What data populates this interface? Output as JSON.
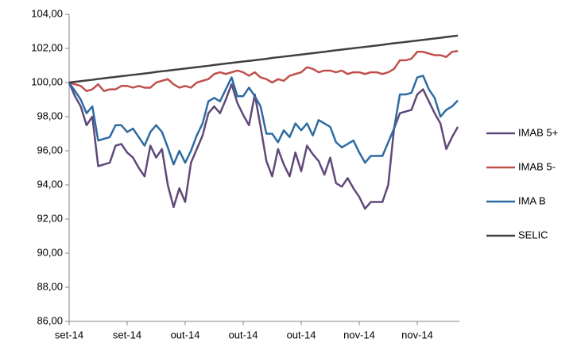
{
  "chart_data": {
    "type": "line",
    "categories": [
      "set-14",
      null,
      null,
      null,
      null,
      null,
      null,
      null,
      null,
      null,
      "set-14",
      null,
      null,
      null,
      null,
      null,
      null,
      null,
      null,
      null,
      "out-14",
      null,
      null,
      null,
      null,
      null,
      null,
      null,
      null,
      null,
      "out-14",
      null,
      null,
      null,
      null,
      null,
      null,
      null,
      null,
      null,
      "out-14",
      null,
      null,
      null,
      null,
      null,
      null,
      null,
      null,
      null,
      "nov-14",
      null,
      null,
      null,
      null,
      null,
      null,
      null,
      null,
      null,
      "nov-14",
      null,
      null,
      null,
      null,
      null,
      null,
      null
    ],
    "ylim": [
      86,
      104
    ],
    "yticks": [
      {
        "value": 86,
        "label": "86,00"
      },
      {
        "value": 88,
        "label": "88,00"
      },
      {
        "value": 90,
        "label": "90,00"
      },
      {
        "value": 92,
        "label": "92,00"
      },
      {
        "value": 94,
        "label": "94,00"
      },
      {
        "value": 96,
        "label": "96,00"
      },
      {
        "value": 98,
        "label": "98,00"
      },
      {
        "value": 100,
        "label": "100,00"
      },
      {
        "value": 102,
        "label": "102,00"
      },
      {
        "value": 104,
        "label": "104,00"
      }
    ],
    "grid": false,
    "legend": "right",
    "series": [
      {
        "name": "IMAB 5+",
        "color": "#60497a",
        "values": [
          100,
          99.2,
          98.6,
          97.5,
          98.0,
          95.1,
          95.2,
          95.3,
          96.3,
          96.4,
          95.9,
          95.6,
          95.0,
          94.5,
          96.3,
          95.6,
          96.1,
          94.0,
          92.7,
          93.8,
          93.0,
          95.3,
          96.1,
          96.9,
          98.2,
          98.6,
          98.2,
          99.0,
          99.9,
          98.8,
          98.1,
          97.5,
          99.3,
          97.4,
          95.4,
          94.5,
          96.1,
          95.2,
          94.5,
          95.9,
          94.8,
          96.3,
          95.8,
          95.4,
          94.6,
          95.6,
          94.1,
          93.9,
          94.4,
          93.8,
          93.3,
          92.6,
          93.0,
          93.0,
          93.0,
          94.0,
          97.3,
          98.2,
          98.3,
          98.4,
          99.3,
          99.6,
          98.9,
          98.2,
          97.6,
          96.1,
          96.8,
          97.4
        ]
      },
      {
        "name": "IMAB 5-",
        "color": "#c0504d",
        "values": [
          100,
          99.9,
          99.8,
          99.5,
          99.6,
          99.9,
          99.5,
          99.6,
          99.6,
          99.8,
          99.8,
          99.7,
          99.8,
          99.7,
          99.7,
          100.0,
          100.1,
          100.2,
          99.9,
          99.7,
          99.8,
          99.7,
          100.0,
          100.1,
          100.2,
          100.5,
          100.6,
          100.5,
          100.6,
          100.7,
          100.6,
          100.4,
          100.6,
          100.3,
          100.2,
          100.0,
          100.2,
          100.1,
          100.4,
          100.5,
          100.6,
          100.9,
          100.8,
          100.6,
          100.7,
          100.7,
          100.6,
          100.7,
          100.5,
          100.6,
          100.6,
          100.5,
          100.6,
          100.6,
          100.5,
          100.6,
          100.8,
          101.3,
          101.3,
          101.4,
          101.8,
          101.8,
          101.7,
          101.6,
          101.6,
          101.5,
          101.8,
          101.85
        ]
      },
      {
        "name": "IMA B",
        "color": "#2e6ba3",
        "values": [
          100,
          99.5,
          99.0,
          98.2,
          98.6,
          96.6,
          96.7,
          96.8,
          97.5,
          97.5,
          97.1,
          97.3,
          96.8,
          96.3,
          97.1,
          97.5,
          97.1,
          96.2,
          95.2,
          96.0,
          95.3,
          96.0,
          96.9,
          97.6,
          98.9,
          99.1,
          98.9,
          99.6,
          100.3,
          99.2,
          99.2,
          99.7,
          99.2,
          98.6,
          97.0,
          97.0,
          96.5,
          97.2,
          96.8,
          97.6,
          97.2,
          97.6,
          96.9,
          97.8,
          97.6,
          97.4,
          96.5,
          96.2,
          96.4,
          96.6,
          95.9,
          95.3,
          95.7,
          95.7,
          95.7,
          96.5,
          97.3,
          99.3,
          99.3,
          99.4,
          100.3,
          100.4,
          99.6,
          99.1,
          98.0,
          98.4,
          98.6,
          98.95
        ]
      },
      {
        "name": "SELIC",
        "color": "#404040",
        "values": [
          100.0,
          100.04,
          100.08,
          100.12,
          100.16,
          100.21,
          100.25,
          100.29,
          100.33,
          100.37,
          100.41,
          100.45,
          100.49,
          100.53,
          100.57,
          100.62,
          100.66,
          100.7,
          100.74,
          100.78,
          100.82,
          100.86,
          100.9,
          100.94,
          100.98,
          101.03,
          101.07,
          101.11,
          101.15,
          101.19,
          101.23,
          101.27,
          101.31,
          101.35,
          101.39,
          101.44,
          101.48,
          101.52,
          101.56,
          101.6,
          101.64,
          101.68,
          101.72,
          101.76,
          101.8,
          101.85,
          101.89,
          101.93,
          101.97,
          102.01,
          102.05,
          102.09,
          102.13,
          102.17,
          102.21,
          102.26,
          102.3,
          102.34,
          102.38,
          102.42,
          102.46,
          102.5,
          102.54,
          102.58,
          102.62,
          102.67,
          102.71,
          102.75
        ]
      }
    ]
  }
}
